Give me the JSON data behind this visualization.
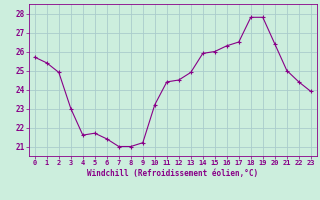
{
  "x": [
    0,
    1,
    2,
    3,
    4,
    5,
    6,
    7,
    8,
    9,
    10,
    11,
    12,
    13,
    14,
    15,
    16,
    17,
    18,
    19,
    20,
    21,
    22,
    23
  ],
  "y": [
    25.7,
    25.4,
    24.9,
    23.0,
    21.6,
    21.7,
    21.4,
    21.0,
    21.0,
    21.2,
    23.2,
    24.4,
    24.5,
    24.9,
    25.9,
    26.0,
    26.3,
    26.5,
    27.8,
    27.8,
    26.4,
    25.0,
    24.4,
    23.9
  ],
  "line_color": "#880088",
  "marker": "+",
  "marker_size": 3,
  "bg_color": "#cceedd",
  "grid_color": "#aacccc",
  "xlabel": "Windchill (Refroidissement éolien,°C)",
  "xlabel_color": "#880088",
  "tick_color": "#880088",
  "ylim": [
    20.5,
    28.5
  ],
  "yticks": [
    21,
    22,
    23,
    24,
    25,
    26,
    27,
    28
  ],
  "xticks": [
    0,
    1,
    2,
    3,
    4,
    5,
    6,
    7,
    8,
    9,
    10,
    11,
    12,
    13,
    14,
    15,
    16,
    17,
    18,
    19,
    20,
    21,
    22,
    23
  ],
  "xlim": [
    -0.5,
    23.5
  ]
}
